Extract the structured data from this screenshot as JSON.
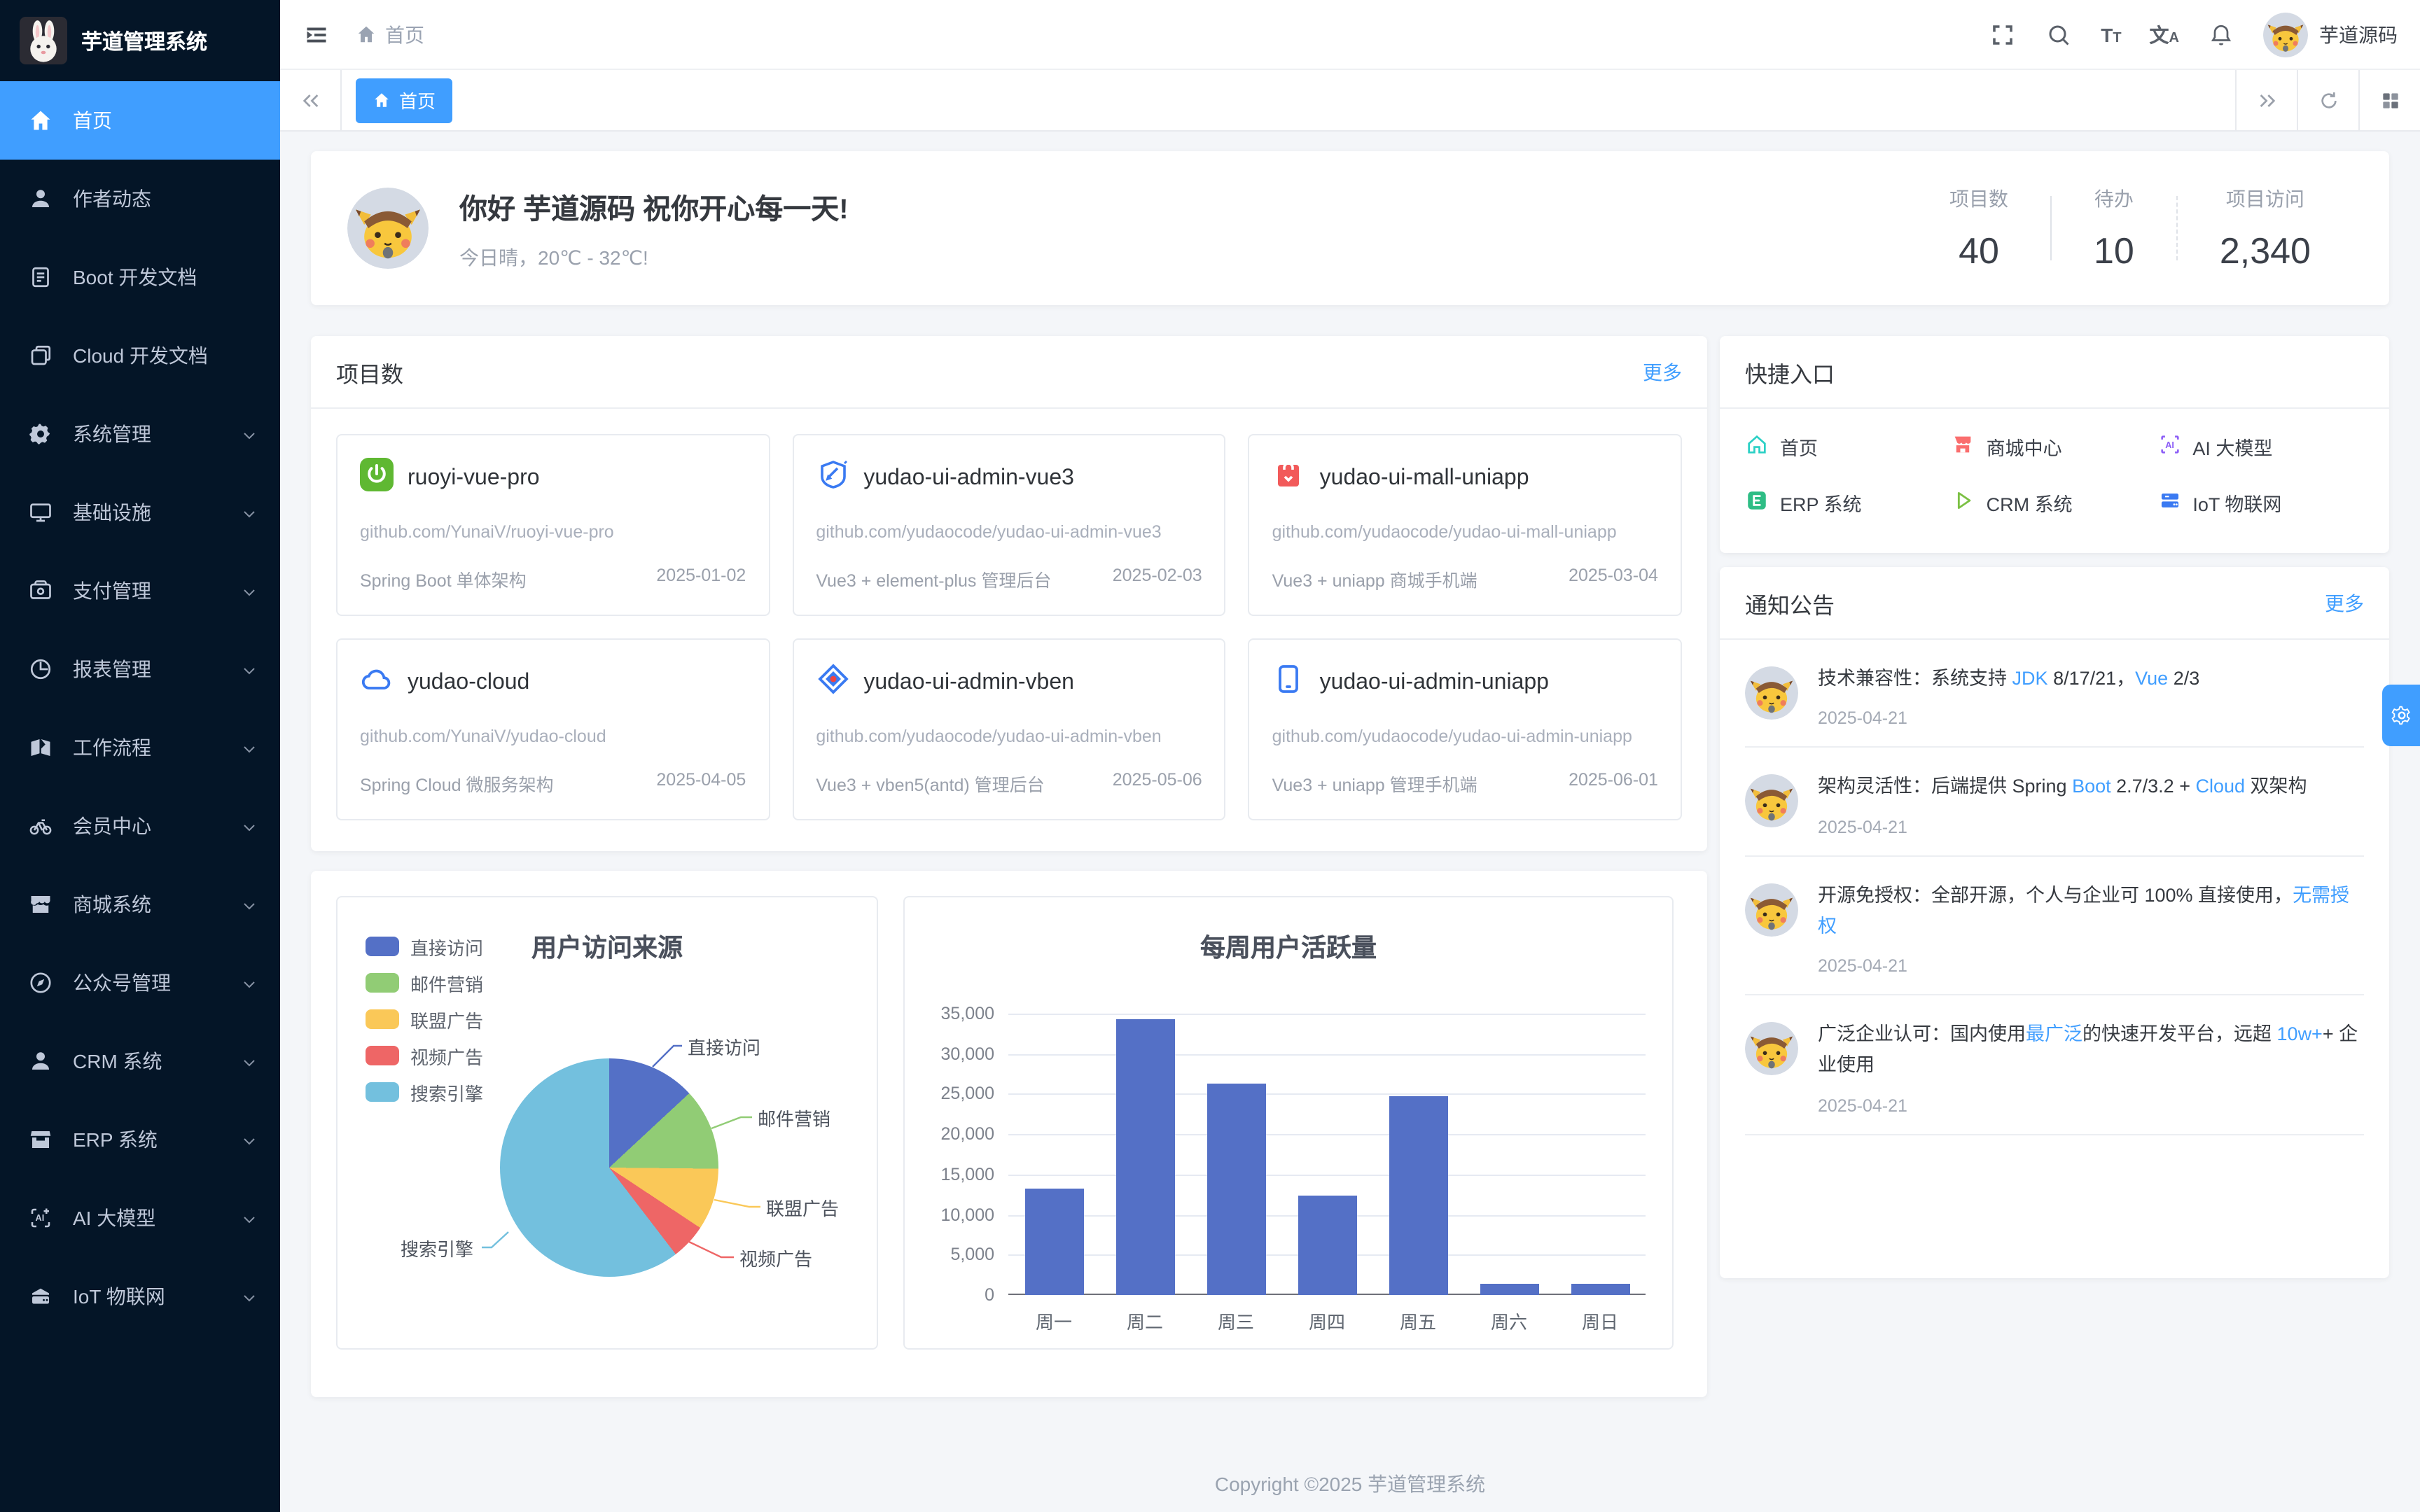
{
  "app": {
    "title": "芋道管理系统",
    "footer": "Copyright ©2025 芋道管理系统"
  },
  "sidebar": {
    "items": [
      {
        "label": "首页",
        "icon": "home-icon",
        "active": true,
        "expandable": false
      },
      {
        "label": "作者动态",
        "icon": "user-icon",
        "active": false,
        "expandable": false
      },
      {
        "label": "Boot 开发文档",
        "icon": "document-icon",
        "active": false,
        "expandable": false
      },
      {
        "label": "Cloud 开发文档",
        "icon": "documents-icon",
        "active": false,
        "expandable": false
      },
      {
        "label": "系统管理",
        "icon": "gear-icon",
        "active": false,
        "expandable": true
      },
      {
        "label": "基础设施",
        "icon": "monitor-icon",
        "active": false,
        "expandable": true
      },
      {
        "label": "支付管理",
        "icon": "payment-icon",
        "active": false,
        "expandable": true
      },
      {
        "label": "报表管理",
        "icon": "report-icon",
        "active": false,
        "expandable": true
      },
      {
        "label": "工作流程",
        "icon": "workflow-icon",
        "active": false,
        "expandable": true
      },
      {
        "label": "会员中心",
        "icon": "member-icon",
        "active": false,
        "expandable": true
      },
      {
        "label": "商城系统",
        "icon": "shop-icon",
        "active": false,
        "expandable": true
      },
      {
        "label": "公众号管理",
        "icon": "compass-icon",
        "active": false,
        "expandable": true
      },
      {
        "label": "CRM 系统",
        "icon": "crm-icon",
        "active": false,
        "expandable": true
      },
      {
        "label": "ERP 系统",
        "icon": "store-icon",
        "active": false,
        "expandable": true
      },
      {
        "label": "AI 大模型",
        "icon": "ai-icon",
        "active": false,
        "expandable": true
      },
      {
        "label": "IoT 物联网",
        "icon": "iot-icon",
        "active": false,
        "expandable": true
      }
    ]
  },
  "header": {
    "breadcrumb": "首页",
    "user_name": "芋道源码",
    "font_icon_big": "T",
    "font_icon_small": "T",
    "lang_icon_big": "文",
    "lang_icon_small": "A"
  },
  "tabs": {
    "active_label": "首页"
  },
  "welcome": {
    "greeting": "你好 芋道源码 祝你开心每一天!",
    "weather": "今日晴，20℃ - 32℃!",
    "stats": [
      {
        "label": "项目数",
        "value": "40"
      },
      {
        "label": "待办",
        "value": "10"
      },
      {
        "label": "项目访问",
        "value": "2,340"
      }
    ]
  },
  "projects": {
    "title": "项目数",
    "more": "更多",
    "items": [
      {
        "name": "ruoyi-vue-pro",
        "icon": "spring-icon",
        "repo": "github.com/YunaiV/ruoyi-vue-pro",
        "desc": "Spring Boot 单体架构",
        "date": "2025-01-02"
      },
      {
        "name": "yudao-ui-admin-vue3",
        "icon": "vue-admin-icon",
        "repo": "github.com/yudaocode/yudao-ui-admin-vue3",
        "desc": "Vue3 + element-plus 管理后台",
        "date": "2025-02-03"
      },
      {
        "name": "yudao-ui-mall-uniapp",
        "icon": "mall-bag-icon",
        "repo": "github.com/yudaocode/yudao-ui-mall-uniapp",
        "desc": "Vue3 + uniapp 商城手机端",
        "date": "2025-03-04"
      },
      {
        "name": "yudao-cloud",
        "icon": "cloud-icon",
        "repo": "github.com/YunaiV/yudao-cloud",
        "desc": "Spring Cloud 微服务架构",
        "date": "2025-04-05"
      },
      {
        "name": "yudao-ui-admin-vben",
        "icon": "vben-icon",
        "repo": "github.com/yudaocode/yudao-ui-admin-vben",
        "desc": "Vue3 + vben5(antd) 管理后台",
        "date": "2025-05-06"
      },
      {
        "name": "yudao-ui-admin-uniapp",
        "icon": "phone-icon",
        "repo": "github.com/yudaocode/yudao-ui-admin-uniapp",
        "desc": "Vue3 + uniapp 管理手机端",
        "date": "2025-06-01"
      }
    ]
  },
  "quick": {
    "title": "快捷入口",
    "items": [
      {
        "label": "首页",
        "icon": "home-outline-icon"
      },
      {
        "label": "商城中心",
        "icon": "mall-center-icon"
      },
      {
        "label": "AI 大模型",
        "icon": "ai-model-icon"
      },
      {
        "label": "ERP 系统",
        "icon": "erp-icon"
      },
      {
        "label": "CRM 系统",
        "icon": "crm-triangle-icon"
      },
      {
        "label": "IoT 物联网",
        "icon": "iot-server-icon"
      }
    ]
  },
  "notices": {
    "title": "通知公告",
    "more": "更多",
    "items": [
      {
        "segments": [
          {
            "text": "技术兼容性：系统支持 "
          },
          {
            "text": "JDK",
            "link": true
          },
          {
            "text": " 8/17/21，"
          },
          {
            "text": "Vue",
            "link": true
          },
          {
            "text": " 2/3"
          }
        ],
        "date": "2025-04-21"
      },
      {
        "segments": [
          {
            "text": "架构灵活性：后端提供 Spring "
          },
          {
            "text": "Boot",
            "link": true
          },
          {
            "text": " 2.7/3.2 + "
          },
          {
            "text": "Cloud",
            "link": true
          },
          {
            "text": " 双架构"
          }
        ],
        "date": "2025-04-21"
      },
      {
        "segments": [
          {
            "text": "开源免授权：全部开源，个人与企业可 100% 直接使用，"
          },
          {
            "text": "无需授权",
            "link": true
          }
        ],
        "date": "2025-04-21"
      },
      {
        "segments": [
          {
            "text": "广泛企业认可：国内使用"
          },
          {
            "text": "最广泛",
            "link": true
          },
          {
            "text": "的快速开发平台，远超 "
          },
          {
            "text": "10w+",
            "link": true
          },
          {
            "text": "+ 企业使用"
          }
        ],
        "date": "2025-04-21"
      }
    ]
  },
  "chart_data": [
    {
      "type": "pie",
      "title": "用户访问来源",
      "legend_position": "top-left",
      "categories": [
        "直接访问",
        "邮件营销",
        "联盟广告",
        "视频广告",
        "搜索引擎"
      ],
      "values": [
        335,
        310,
        234,
        135,
        1548
      ],
      "colors": [
        "#5470c6",
        "#91cc75",
        "#fac858",
        "#ee6666",
        "#73c0de"
      ]
    },
    {
      "type": "bar",
      "title": "每周用户活跃量",
      "categories": [
        "周一",
        "周二",
        "周三",
        "周四",
        "周五",
        "周六",
        "周日"
      ],
      "values": [
        13300,
        34300,
        26300,
        12400,
        24700,
        1400,
        1400
      ],
      "ylim": [
        0,
        35000
      ],
      "ytick_step": 5000,
      "bar_color": "#5470c6",
      "grid": true
    }
  ]
}
